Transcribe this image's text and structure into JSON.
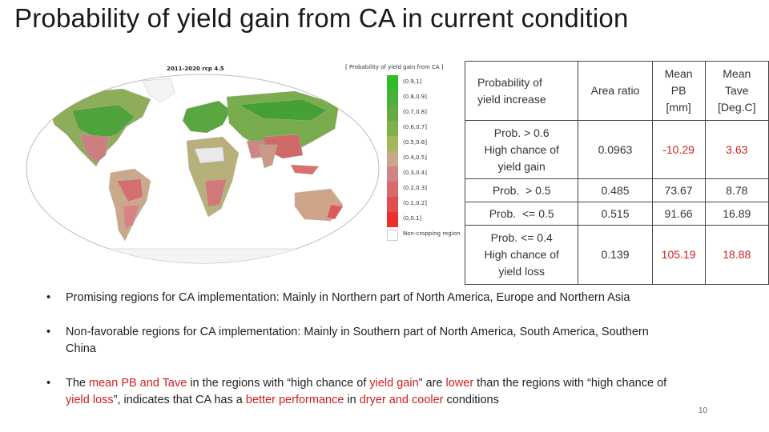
{
  "title": "Probability of yield gain from CA in current condition",
  "map": {
    "caption": "2011-2020 rcp 4.5",
    "legend_title": "[ Probability of yield gain from CA ]",
    "legend": [
      {
        "label": "(0.9,1]",
        "color": "#33bb2a"
      },
      {
        "label": "(0.8,0.9]",
        "color": "#49b03a"
      },
      {
        "label": "(0.7,0.8]",
        "color": "#63aa45"
      },
      {
        "label": "(0.6,0.7]",
        "color": "#7fb04e"
      },
      {
        "label": "(0.5,0.6]",
        "color": "#a6b75b"
      },
      {
        "label": "(0.4,0.5]",
        "color": "#c9a88a"
      },
      {
        "label": "(0.3,0.4]",
        "color": "#cf8383"
      },
      {
        "label": "(0.2,0.3]",
        "color": "#d86a6a"
      },
      {
        "label": "(0.1,0.2]",
        "color": "#e04f4f"
      },
      {
        "label": "(0,0.1]",
        "color": "#ee2d2d"
      },
      {
        "label": "Non-cropping region",
        "color": "#ffffff"
      }
    ]
  },
  "table": {
    "header": [
      "Probability of\nyield increase",
      "Area ratio",
      "Mean\nPB\n[mm]",
      "Mean\nTave\n[Deg.C]"
    ],
    "rows": [
      {
        "label": "Prob. > 0.6\nHigh chance of\nyield gain",
        "area": "0.0963",
        "pb": "-10.29",
        "tave": "3.63"
      },
      {
        "label": "Prob.  > 0.5",
        "area": "0.485",
        "pb": "73.67",
        "tave": "8.78"
      },
      {
        "label": "Prob.  <= 0.5",
        "area": "0.515",
        "pb": "91.66",
        "tave": "16.89"
      },
      {
        "label": "Prob.  <= 0.4\nHigh chance of\nyield loss",
        "area": "0.139",
        "pb": "105.19",
        "tave": "18.88"
      }
    ]
  },
  "bullets": {
    "b1": "Promising regions for CA implementation: Mainly in Northern part of North America, Europe and Northern Asia",
    "b2": "Non-favorable regions for CA implementation: Mainly in Southern part of North America, South America, Southern China",
    "b3": {
      "t1": "The ",
      "t2": "mean PB and Tave",
      "t3": " in the regions with “high chance of ",
      "t4": "yield gain",
      "t5": "” are ",
      "t6": "lower",
      "t7": " than the regions with “high chance of ",
      "t8": "yield loss",
      "t9": "”, indicates that CA has a ",
      "t10": "better performance",
      "t11": " in ",
      "t12": "dryer and cooler",
      "t13": " conditions"
    }
  },
  "page_number": "10"
}
